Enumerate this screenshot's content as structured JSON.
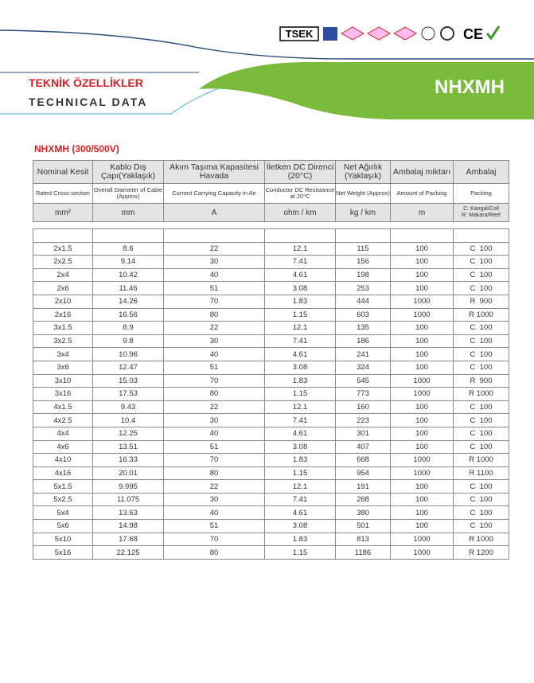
{
  "header": {
    "logos": {
      "tsek": "TSEK",
      "ce": "CE"
    },
    "title_tr": "TEKNİK ÖZELLİKLER",
    "title_en": "TECHNICAL DATA",
    "product": "NHXMH"
  },
  "table": {
    "caption": "NHXMH (300/500V)",
    "columns_tr": [
      "Nominal Kesit",
      "Kablo Dış Çapı(Yaklaşık)",
      "Akım Taşıma Kapasitesi Havada",
      "İletken DC Direnci (20°C)",
      "Net Ağırlık (Yaklaşık)",
      "Ambalaj miktarı",
      "Ambalaj"
    ],
    "columns_en": [
      "Rated Cross-section",
      "Overall Diameter of Cable (Approx)",
      "Current Carrying Capacity in Air",
      "Conductor DC Resistance at 20°C",
      "Net Weight (Approx)",
      "Amount of Packing",
      "Packing"
    ],
    "units": [
      "mm²",
      "mm",
      "A",
      "ohm / km",
      "kg / km",
      "m"
    ],
    "packing_legend": [
      "C: Kangal/Coil",
      "R: Makara/Reel"
    ],
    "rows": [
      [
        "2x1.5",
        "8.6",
        "22",
        "12.1",
        "115",
        "100",
        "C  100"
      ],
      [
        "2x2.5",
        "9.14",
        "30",
        "7.41",
        "156",
        "100",
        "C  100"
      ],
      [
        "2x4",
        "10.42",
        "40",
        "4.61",
        "198",
        "100",
        "C  100"
      ],
      [
        "2x6",
        "11.46",
        "51",
        "3.08",
        "253",
        "100",
        "C  100"
      ],
      [
        "2x10",
        "14.26",
        "70",
        "1.83",
        "444",
        "1000",
        "R  900"
      ],
      [
        "2x16",
        "16.56",
        "80",
        "1.15",
        "603",
        "1000",
        "R 1000"
      ],
      [
        "3x1.5",
        "8.9",
        "22",
        "12.1",
        "135",
        "100",
        "C  100"
      ],
      [
        "3x2.5",
        "9.8",
        "30",
        "7.41",
        "186",
        "100",
        "C  100"
      ],
      [
        "3x4",
        "10.96",
        "40",
        "4.61",
        "241",
        "100",
        "C  100"
      ],
      [
        "3x6",
        "12.47",
        "51",
        "3.08",
        "324",
        "100",
        "C  100"
      ],
      [
        "3x10",
        "15.03",
        "70",
        "1.83",
        "545",
        "1000",
        "R  900"
      ],
      [
        "3x16",
        "17.53",
        "80",
        "1.15",
        "773",
        "1000",
        "R 1000"
      ],
      [
        "4x1.5",
        "9.43",
        "22",
        "12.1",
        "160",
        "100",
        "C  100"
      ],
      [
        "4x2.5",
        "10.4",
        "30",
        "7.41",
        "223",
        "100",
        "C  100"
      ],
      [
        "4x4",
        "12.25",
        "40",
        "4.61",
        "301",
        "100",
        "C  100"
      ],
      [
        "4x6",
        "13.51",
        "51",
        "3.08",
        "407",
        "100",
        "C  100"
      ],
      [
        "4x10",
        "16.33",
        "70",
        "1.83",
        "668",
        "1000",
        "R 1000"
      ],
      [
        "4x16",
        "20.01",
        "80",
        "1.15",
        "954",
        "1000",
        "R 1100"
      ],
      [
        "5x1.5",
        "9.995",
        "22",
        "12.1",
        "191",
        "100",
        "C  100"
      ],
      [
        "5x2.5",
        "11.075",
        "30",
        "7.41",
        "268",
        "100",
        "C  100"
      ],
      [
        "5x4",
        "13.63",
        "40",
        "4.61",
        "380",
        "100",
        "C  100"
      ],
      [
        "5x6",
        "14.98",
        "51",
        "3.08",
        "501",
        "100",
        "C  100"
      ],
      [
        "5x10",
        "17.68",
        "70",
        "1.83",
        "813",
        "1000",
        "R 1000"
      ],
      [
        "5x16",
        "22.125",
        "80",
        "1.15",
        "1186",
        "1000",
        "R 1200"
      ]
    ]
  }
}
